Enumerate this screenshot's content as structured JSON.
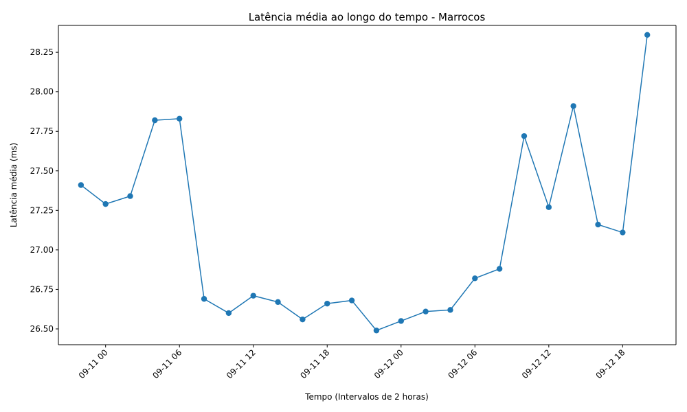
{
  "chart_data": {
    "type": "line",
    "title": "Latência média ao longo do tempo - Marrocos",
    "xlabel": "Tempo (Intervalos de 2 horas)",
    "ylabel": "Latência média (ms)",
    "x_tick_labels": [
      "09-11 00",
      "09-11 06",
      "09-11 12",
      "09-11 18",
      "09-12 00",
      "09-12 06",
      "09-12 12",
      "09-12 18"
    ],
    "y_tick_labels": [
      "26.50",
      "26.75",
      "27.00",
      "27.25",
      "27.50",
      "27.75",
      "28.00",
      "28.25"
    ],
    "y_ticks": [
      26.5,
      26.75,
      27.0,
      27.25,
      27.5,
      27.75,
      28.0,
      28.25
    ],
    "xlim": [
      "09-10 20:10",
      "09-12 22:20"
    ],
    "ylim": [
      26.4,
      28.42
    ],
    "grid": false,
    "color": "#1f77b4",
    "marker": "circle",
    "x": [
      "09-10 22:00",
      "09-11 00:00",
      "09-11 02:00",
      "09-11 04:00",
      "09-11 06:00",
      "09-11 08:00",
      "09-11 10:00",
      "09-11 12:00",
      "09-11 14:00",
      "09-11 16:00",
      "09-11 18:00",
      "09-11 20:00",
      "09-11 22:00",
      "09-12 00:00",
      "09-12 02:00",
      "09-12 04:00",
      "09-12 06:00",
      "09-12 08:00",
      "09-12 10:00",
      "09-12 12:00",
      "09-12 14:00",
      "09-12 16:00",
      "09-12 18:00",
      "09-12 20:00"
    ],
    "y": [
      27.41,
      27.29,
      27.34,
      27.82,
      27.83,
      26.69,
      26.6,
      26.71,
      26.67,
      26.56,
      26.66,
      26.68,
      26.49,
      26.55,
      26.61,
      26.62,
      26.82,
      26.88,
      27.72,
      27.27,
      27.91,
      27.16,
      27.11,
      28.36
    ]
  }
}
